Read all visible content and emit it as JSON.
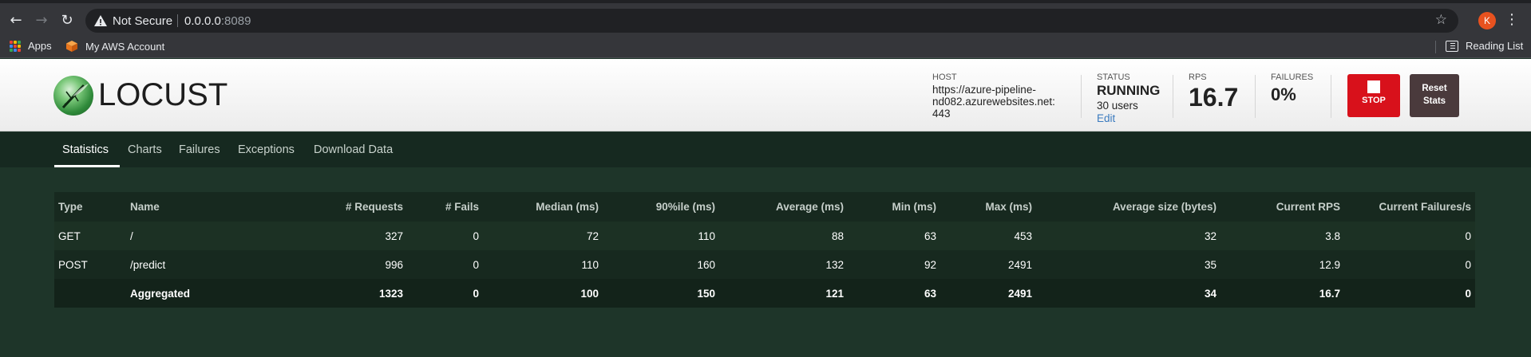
{
  "browser": {
    "security_label": "Not Secure",
    "url_host": "0.0.0.0",
    "url_port": ":8089",
    "avatar_letter": "K",
    "bookmarks": {
      "apps": "Apps",
      "aws": "My AWS Account",
      "reading_list": "Reading List"
    }
  },
  "header": {
    "logo_text": "LOCUST",
    "host_label": "HOST",
    "host_lines": [
      "https://azure-pipeline-",
      "nd082.azurewebsites.net:",
      "443"
    ],
    "status_label": "STATUS",
    "status_value": "RUNNING",
    "users_value": "30 users",
    "edit_label": "Edit",
    "rps_label": "RPS",
    "rps_value": "16.7",
    "failures_label": "FAILURES",
    "failures_value": "0%",
    "stop_label": "STOP",
    "reset_label_1": "Reset",
    "reset_label_2": "Stats"
  },
  "tabs": [
    {
      "label": "Statistics"
    },
    {
      "label": "Charts"
    },
    {
      "label": "Failures"
    },
    {
      "label": "Exceptions"
    },
    {
      "label": "Download Data"
    }
  ],
  "table": {
    "headers": [
      "Type",
      "Name",
      "# Requests",
      "# Fails",
      "Median (ms)",
      "90%ile (ms)",
      "Average (ms)",
      "Min (ms)",
      "Max (ms)",
      "Average size (bytes)",
      "Current RPS",
      "Current Failures/s"
    ],
    "rows": [
      [
        "GET",
        "/",
        "327",
        "0",
        "72",
        "110",
        "88",
        "63",
        "453",
        "32",
        "3.8",
        "0"
      ],
      [
        "POST",
        "/predict",
        "996",
        "0",
        "110",
        "160",
        "132",
        "92",
        "2491",
        "35",
        "12.9",
        "0"
      ],
      [
        "",
        "Aggregated",
        "1323",
        "0",
        "100",
        "150",
        "121",
        "63",
        "2491",
        "34",
        "16.7",
        "0"
      ]
    ]
  },
  "colors": {
    "stop_button": "#d8111b",
    "reset_button": "#4a3a3c",
    "page_bg": "#1e3529",
    "edit_link": "#3b7bbf"
  }
}
